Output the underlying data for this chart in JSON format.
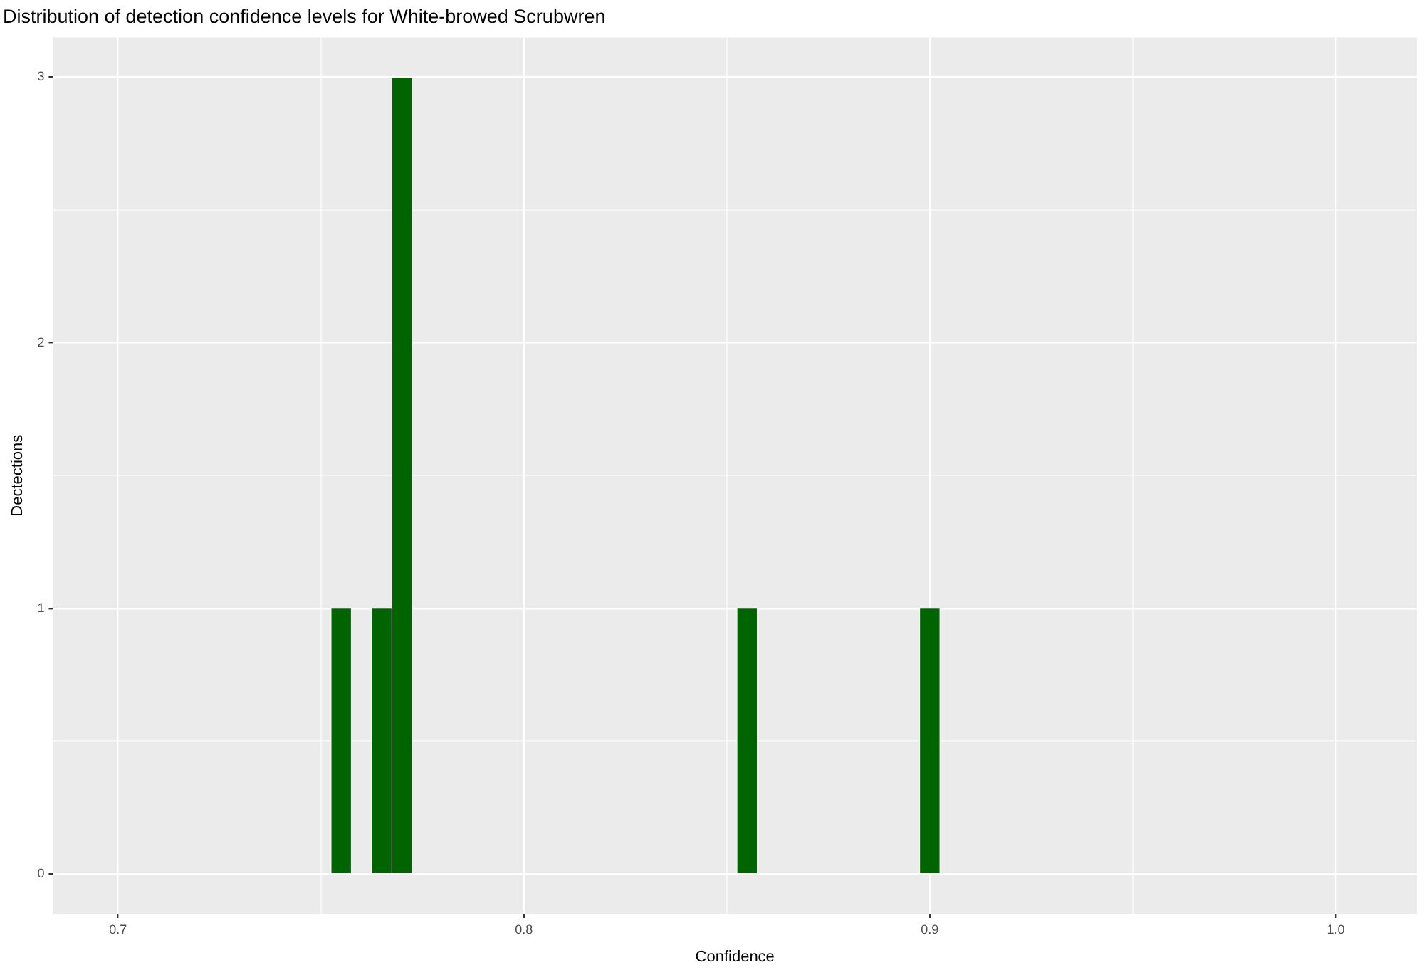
{
  "chart_data": {
    "type": "histogram",
    "title": "Distribution of detection confidence levels for White-browed Scrubwren",
    "xlabel": "Confidence",
    "ylabel": "Dectections",
    "color": "#006400",
    "bins": [
      0.7525,
      0.7575,
      0.7625,
      0.7675,
      0.7725,
      0.7775,
      0.7825,
      0.7875,
      0.7925,
      0.7975,
      0.8025,
      0.8075,
      0.8125,
      0.8175,
      0.8225,
      0.8275,
      0.8325,
      0.8375,
      0.8425,
      0.8475,
      0.8525,
      0.8575,
      0.8625,
      0.8675,
      0.8725,
      0.8775,
      0.8825,
      0.8875,
      0.8925,
      0.8975,
      0.9025
    ],
    "values": [
      1,
      0,
      1,
      3,
      0,
      0,
      0,
      0,
      0,
      0,
      0,
      0,
      0,
      0,
      0,
      0,
      0,
      0,
      0,
      0,
      1,
      0,
      0,
      0,
      0,
      0,
      0,
      0,
      0,
      1
    ],
    "xlim": [
      0.684,
      1.02
    ],
    "xticks": [
      0.7,
      {
        "value": 0.75,
        "label": null
      },
      0.8,
      {
        "value": 0.85,
        "label": null
      },
      0.9,
      {
        "value": 0.95,
        "label": null
      },
      {
        "value": 1,
        "label": "1.0"
      }
    ],
    "ylim": [
      -0.15,
      3.15
    ],
    "yticks": [
      0,
      {
        "value": 0.5,
        "label": null
      },
      1,
      {
        "value": 1.5,
        "label": null
      },
      2,
      {
        "value": 2.5,
        "label": null
      },
      3
    ],
    "grid": true,
    "legend": false
  }
}
